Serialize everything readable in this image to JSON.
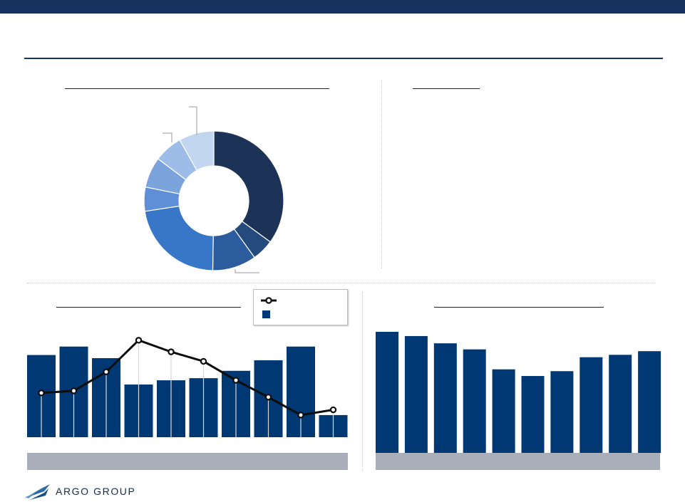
{
  "brand": {
    "name": "ARGO GROUP",
    "navy": "#17325e",
    "bar_color": "#003874",
    "band_color": "#a9aebb",
    "donut_colors": [
      "#1c3257",
      "#254a7e",
      "#2d5c9e",
      "#3876c8",
      "#5f8fd6",
      "#7ba4dd",
      "#9dbde8",
      "#c3d6f0"
    ]
  },
  "chart_data": [
    {
      "type": "pie",
      "variant": "donut",
      "values": [
        34.5,
        5.0,
        10.0,
        22.0,
        5.5,
        7.0,
        6.5,
        8.0
      ]
    },
    {
      "type": "bar",
      "series": [
        {
          "chart": "bar",
          "values": [
            78,
            86,
            75,
            50,
            54,
            56,
            63,
            73,
            86,
            21
          ]
        },
        {
          "chart": "line",
          "marker": "circle",
          "values": [
            42,
            44,
            62,
            92,
            81,
            72,
            54,
            38,
            21,
            26
          ]
        }
      ],
      "ylim": [
        0,
        100
      ]
    },
    {
      "type": "bar",
      "values": [
        100,
        96.5,
        90.5,
        85.5,
        69,
        63.5,
        67.5,
        79,
        81,
        84
      ],
      "ylim": [
        0,
        100
      ]
    }
  ]
}
